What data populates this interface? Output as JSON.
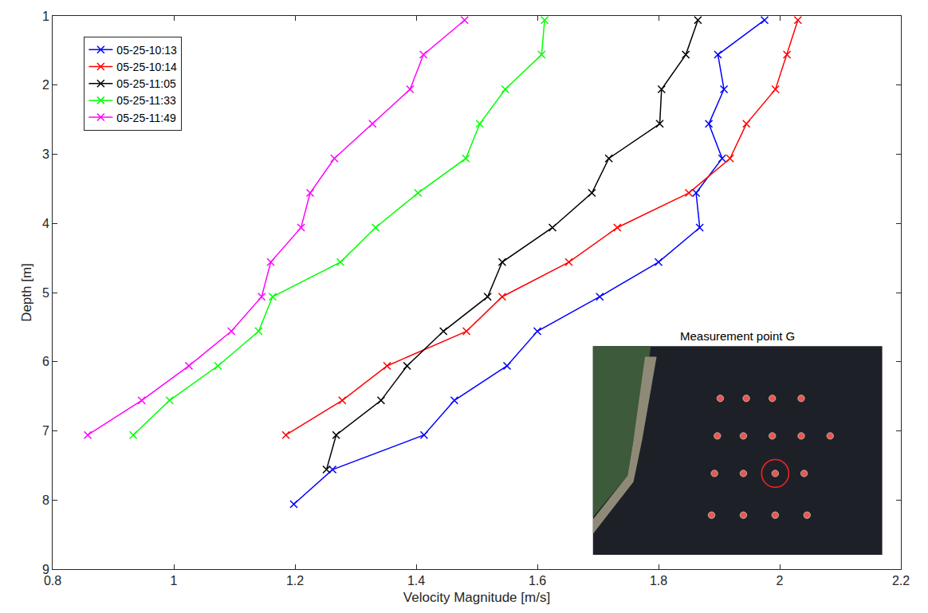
{
  "chart_data": {
    "type": "line",
    "x_label": "Velocity Magnitude [m/s]",
    "y_label": "Depth [m]",
    "annotations": [
      "Measurement point G"
    ],
    "xlim": [
      0.8,
      2.2
    ],
    "xticks": [
      0.8,
      1,
      1.2,
      1.4,
      1.6,
      1.8,
      2,
      2.2
    ],
    "ylim": [
      9,
      1
    ],
    "yticks": [
      1,
      2,
      3,
      4,
      5,
      6,
      7,
      8,
      9
    ],
    "grid": false,
    "legend": "top left",
    "marker": "x",
    "line_style": "solid",
    "series": [
      {
        "name": "05-25-10:13",
        "color": "#0000ff",
        "x": [
          1.975,
          1.898,
          1.908,
          1.883,
          1.905,
          1.862,
          1.868,
          1.8,
          1.703,
          1.6,
          1.55,
          1.463,
          1.413,
          1.262,
          1.198
        ],
        "y": [
          1.06,
          1.56,
          2.06,
          2.56,
          3.06,
          3.56,
          4.06,
          4.56,
          5.06,
          5.56,
          6.06,
          6.56,
          7.06,
          7.56,
          8.06
        ]
      },
      {
        "name": "05-25-10:14",
        "color": "#ff0000",
        "x": [
          2.03,
          2.012,
          1.993,
          1.945,
          1.918,
          1.85,
          1.732,
          1.652,
          1.542,
          1.483,
          1.352,
          1.278,
          1.185
        ],
        "y": [
          1.06,
          1.56,
          2.06,
          2.56,
          3.06,
          3.56,
          4.06,
          4.56,
          5.06,
          5.56,
          6.06,
          6.56,
          7.06
        ]
      },
      {
        "name": "05-25-11:05",
        "color": "#000000",
        "x": [
          1.865,
          1.845,
          1.805,
          1.802,
          1.718,
          1.69,
          1.625,
          1.542,
          1.518,
          1.445,
          1.385,
          1.342,
          1.268,
          1.252
        ],
        "y": [
          1.06,
          1.56,
          2.06,
          2.56,
          3.06,
          3.56,
          4.06,
          4.56,
          5.06,
          5.56,
          6.06,
          6.56,
          7.06,
          7.56
        ]
      },
      {
        "name": "05-25-11:33",
        "color": "#00ff00",
        "x": [
          1.612,
          1.607,
          1.547,
          1.505,
          1.482,
          1.403,
          1.333,
          1.275,
          1.163,
          1.14,
          1.073,
          0.993,
          0.933
        ],
        "y": [
          1.06,
          1.56,
          2.06,
          2.56,
          3.06,
          3.56,
          4.06,
          4.56,
          5.06,
          5.56,
          6.06,
          6.56,
          7.06
        ]
      },
      {
        "name": "05-25-11:49",
        "color": "#ff00ff",
        "x": [
          1.48,
          1.412,
          1.39,
          1.328,
          1.265,
          1.225,
          1.21,
          1.16,
          1.145,
          1.095,
          1.025,
          0.947,
          0.858
        ],
        "y": [
          1.06,
          1.56,
          2.06,
          2.56,
          3.06,
          3.56,
          4.06,
          4.56,
          5.06,
          5.56,
          6.06,
          6.56,
          7.06
        ]
      }
    ]
  }
}
